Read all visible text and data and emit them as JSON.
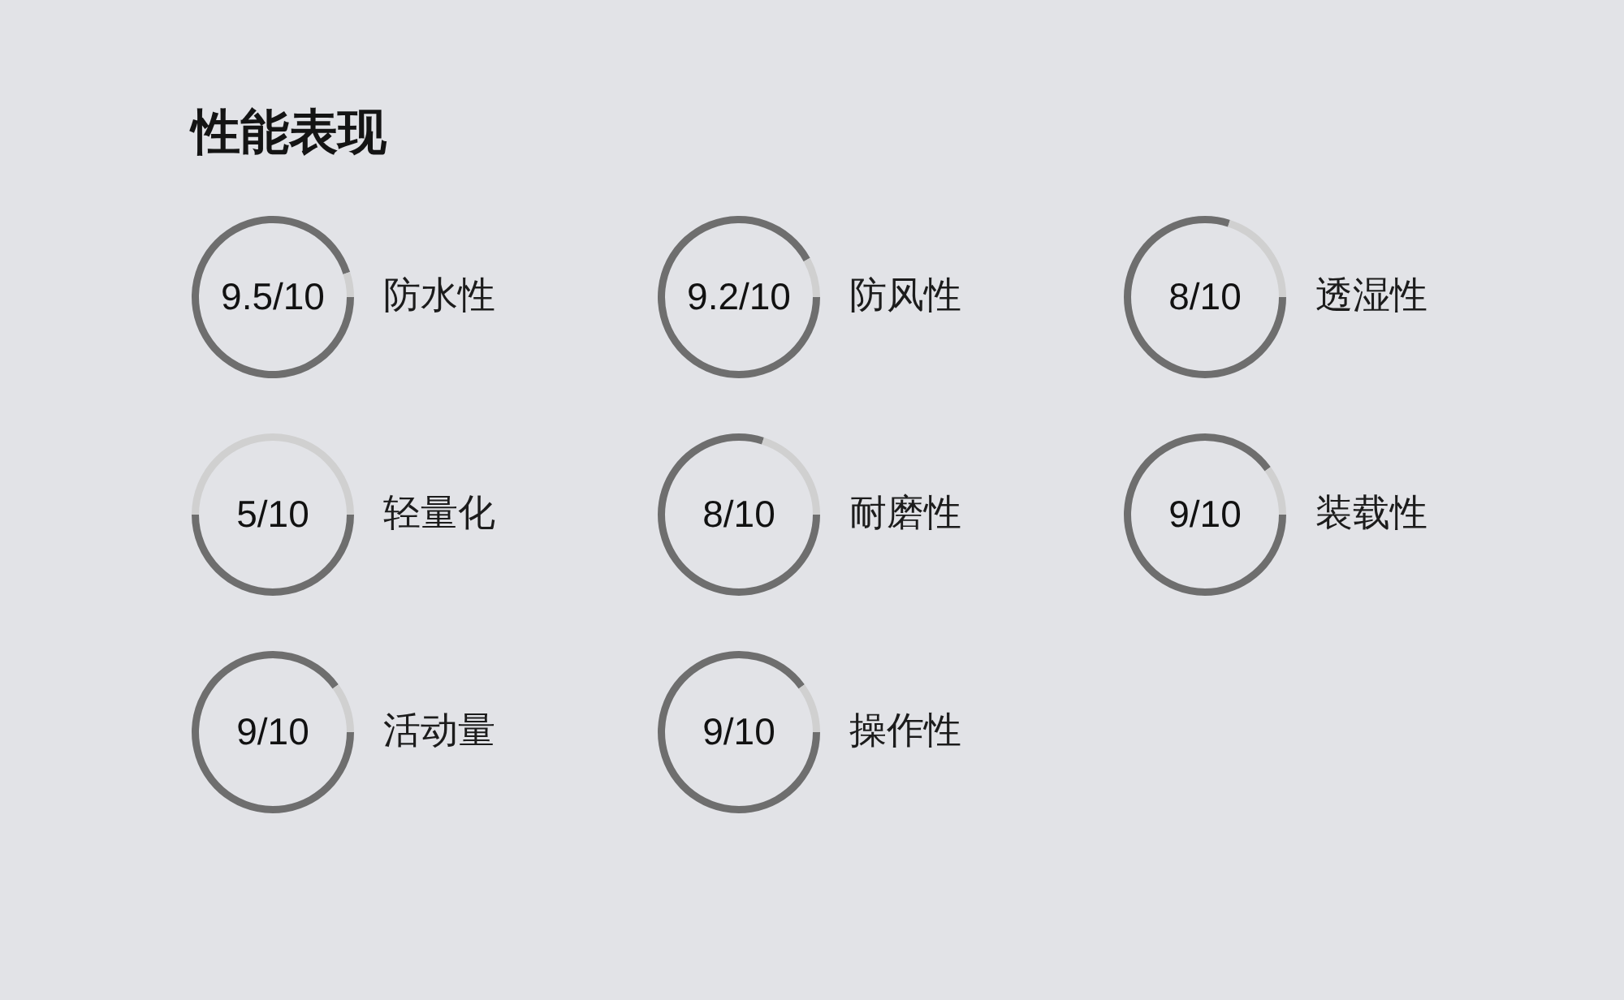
{
  "chart_data": [
    {
      "type": "donut",
      "title": "性能表现",
      "categories": [
        "防水性",
        null
      ],
      "values": [
        95,
        5
      ],
      "colors": [
        "#6e6e6e",
        "#d0d0d0"
      ],
      "annotations": [
        "9.5/10"
      ]
    },
    {
      "type": "donut",
      "categories": [
        "防风性",
        null
      ],
      "values": [
        92,
        8
      ],
      "colors": [
        "#6e6e6e",
        "#d0d0d0"
      ],
      "annotations": [
        "9.2/10"
      ]
    },
    {
      "type": "donut",
      "categories": [
        "透湿性",
        null
      ],
      "values": [
        80,
        20
      ],
      "colors": [
        "#6e6e6e",
        "#d0d0d0"
      ],
      "annotations": [
        "8/10"
      ]
    },
    {
      "type": "donut",
      "categories": [
        "轻量化",
        null
      ],
      "values": [
        50,
        50
      ],
      "colors": [
        "#6e6e6e",
        "#d0d0d0"
      ],
      "annotations": [
        "5/10"
      ]
    },
    {
      "type": "donut",
      "categories": [
        "耐磨性",
        null
      ],
      "values": [
        80,
        20
      ],
      "colors": [
        "#6e6e6e",
        "#d0d0d0"
      ],
      "annotations": [
        "8/10"
      ]
    },
    {
      "type": "donut",
      "categories": [
        "装载性",
        null
      ],
      "values": [
        90,
        10
      ],
      "colors": [
        "#6e6e6e",
        "#d0d0d0"
      ],
      "annotations": [
        "9/10"
      ]
    },
    {
      "type": "donut",
      "categories": [
        "活动量",
        null
      ],
      "values": [
        90,
        10
      ],
      "colors": [
        "#6e6e6e",
        "#d0d0d0"
      ],
      "annotations": [
        "9/10"
      ]
    },
    {
      "type": "donut",
      "categories": [
        "操作性",
        null
      ],
      "values": [
        90,
        10
      ],
      "colors": [
        "#6e6e6e",
        "#d0d0d0"
      ],
      "annotations": [
        "9/10"
      ]
    }
  ]
}
